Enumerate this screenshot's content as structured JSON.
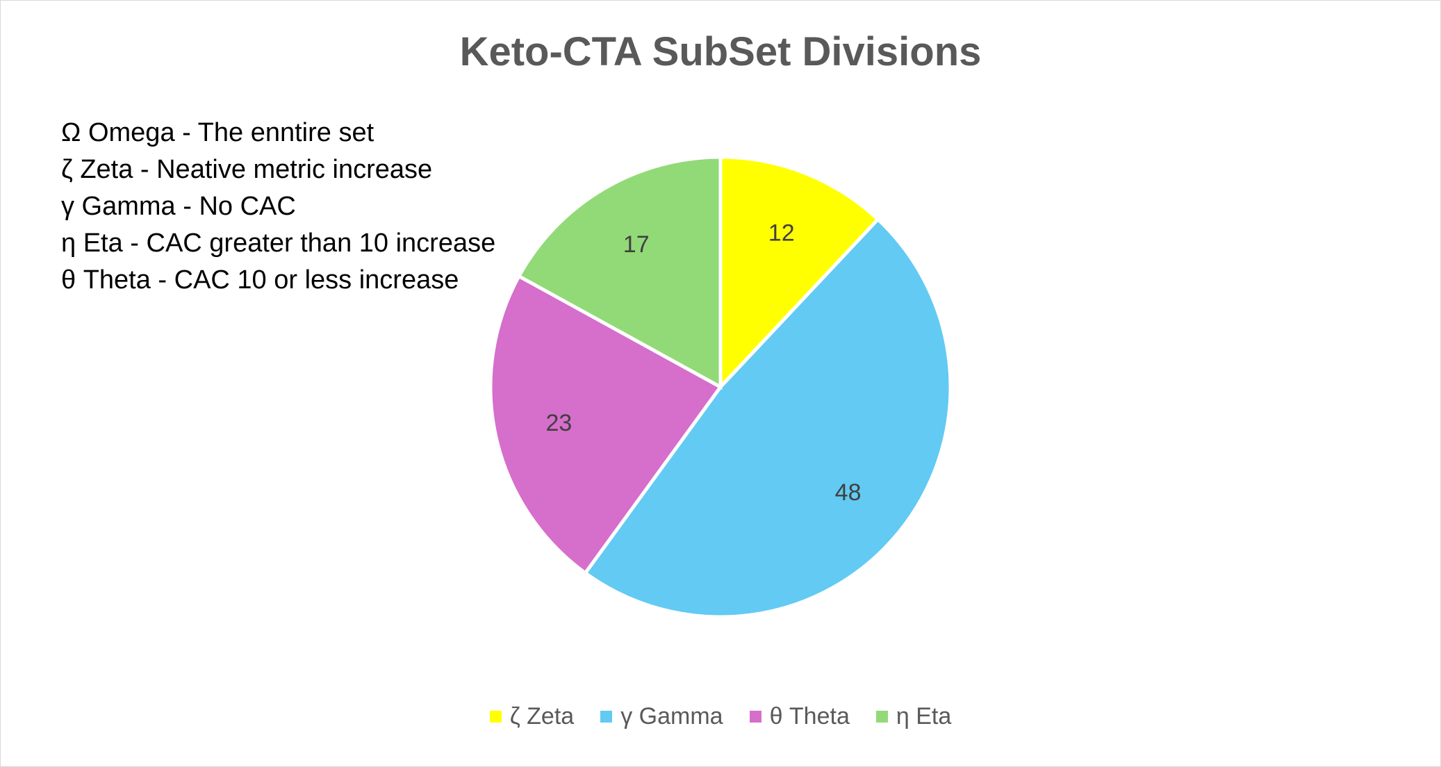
{
  "chart_data": {
    "type": "pie",
    "title": "Keto-CTA SubSet Divisions",
    "categories": [
      "ζ Zeta",
      "γ Gamma",
      "θ Theta",
      "η Eta"
    ],
    "values": [
      12,
      48,
      23,
      17
    ],
    "data_labels": [
      "12",
      "48",
      "23",
      "17"
    ],
    "colors": [
      "#FFFF00",
      "#62CAF3",
      "#D66ECB",
      "#92DA78"
    ],
    "legend_position": "bottom",
    "start_angle": "12 o'clock",
    "direction": "clockwise",
    "annotations": [
      "Ω Omega  - The enntire set",
      "ζ Zeta - Neative metric increase",
      "γ Gamma - No CAC",
      "η Eta - CAC greater than 10 increase",
      "θ Theta - CAC 10 or less increase"
    ]
  }
}
